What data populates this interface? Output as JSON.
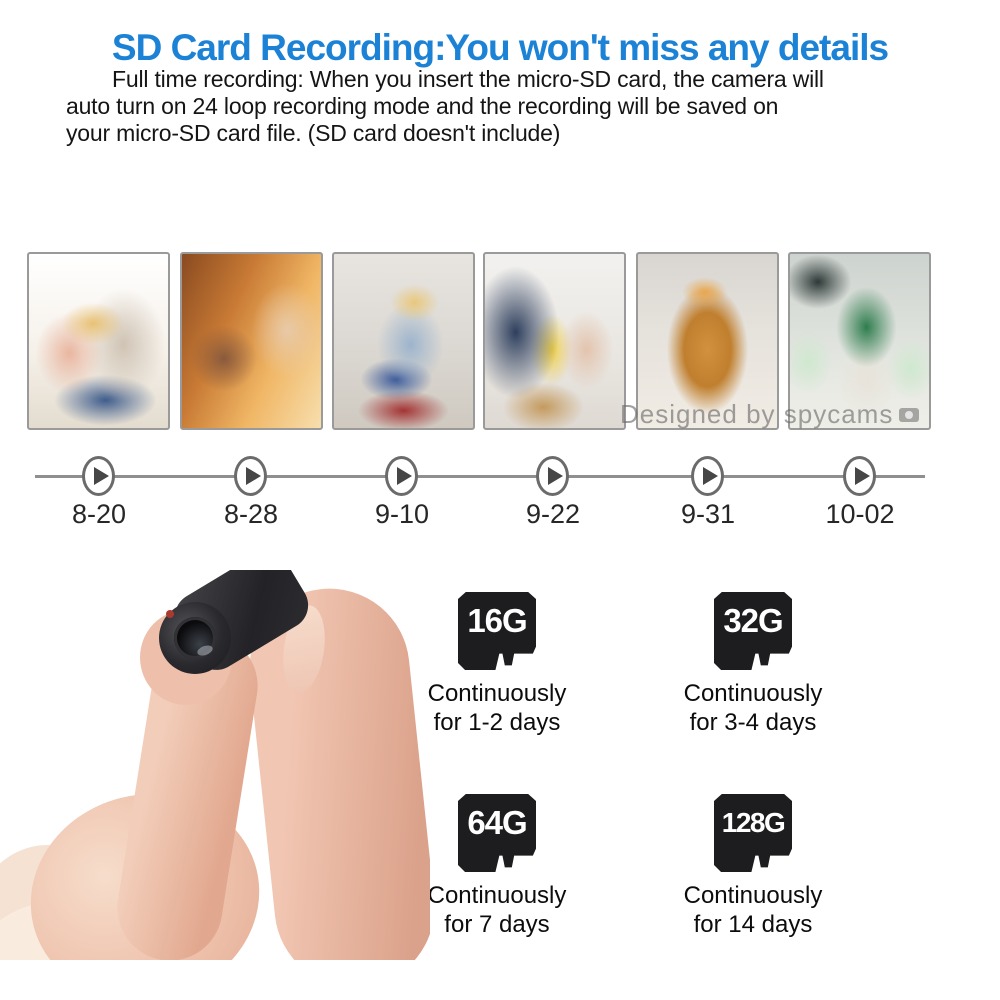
{
  "header": {
    "title": "SD Card Recording:You won't miss any details",
    "description_lines": [
      "Full time recording: When you insert the micro-SD card, the camera will",
      "auto turn on 24 loop recording mode and the recording will be saved on",
      "your micro-SD card file. (SD card doesn't include)"
    ]
  },
  "colors": {
    "title": "#1b82d6",
    "timeline": "#8f8f8f",
    "card": "#1d1d1f"
  },
  "photos": [
    {
      "alt": "Baby and toddler playing together on the floor of a bright room"
    },
    {
      "alt": "Father and son playing on the rug in warm orange sunlight"
    },
    {
      "alt": "Blond boy in a blue shirt playing with a toy on the floor"
    },
    {
      "alt": "Father in plaid shirt opening a cardboard box with a toddler"
    },
    {
      "alt": "Golden retriever dog sitting in the living room"
    },
    {
      "alt": "Mother in green baking with two children, flour in the air"
    }
  ],
  "watermark": {
    "text": "Designed by spycams"
  },
  "timeline": {
    "dates": [
      "8-20",
      "8-28",
      "9-10",
      "9-22",
      "9-31",
      "10-02"
    ]
  },
  "storage_options": [
    {
      "capacity": "16G",
      "label_line1": "Continuously",
      "label_line2": "for 1-2 days"
    },
    {
      "capacity": "32G",
      "label_line1": "Continuously",
      "label_line2": "for 3-4 days"
    },
    {
      "capacity": "64G",
      "label_line1": "Continuously",
      "label_line2": "for 7 days"
    },
    {
      "capacity": "128G",
      "label_line1": "Continuously",
      "label_line2": "for 14 days"
    }
  ],
  "product": {
    "description": "Mini camera held between index finger and thumb"
  }
}
